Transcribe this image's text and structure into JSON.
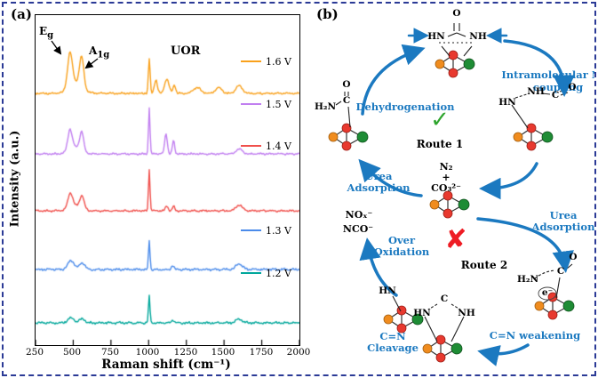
{
  "figure": {
    "panel_a": "(a)",
    "panel_b": "(b)"
  },
  "colors": {
    "border_blue": "#2B3A96",
    "mechanism_blue": "#1B79C0",
    "check_green": "#2FA52E",
    "cross_red": "#EE1C24",
    "atom_orange": "#F08C1E",
    "atom_red": "#E8392F",
    "atom_green": "#1E8C35"
  },
  "chart_data": {
    "type": "line",
    "title": "",
    "xlabel": "Raman shift (cm⁻¹)",
    "ylabel": "Intensity (a.u.)",
    "xlim": [
      250,
      2000
    ],
    "x_ticks": [
      "250",
      "500",
      "750",
      "1000",
      "1250",
      "1500",
      "1750",
      "2000"
    ],
    "grid": false,
    "legend_position": "inside-right",
    "annotations": {
      "eg_main": "E",
      "eg_sub": "g",
      "a1g_main": "A",
      "a1g_sub": "1g",
      "uor": "UOR"
    },
    "peak_format": "[center_cm-1, width_cm-1, relative_intensity]",
    "series": [
      {
        "name": "1.6 V",
        "color": "#F9A11C",
        "noise": 0.025,
        "peaks": [
          [
            478,
            22,
            0.7
          ],
          [
            556,
            20,
            0.62
          ],
          [
            515,
            60,
            0.22
          ],
          [
            1004,
            8,
            0.72
          ],
          [
            1048,
            14,
            0.28
          ],
          [
            1120,
            20,
            0.3
          ],
          [
            1170,
            12,
            0.18
          ],
          [
            1320,
            35,
            0.12
          ],
          [
            1465,
            30,
            0.12
          ],
          [
            1600,
            30,
            0.16
          ]
        ]
      },
      {
        "name": "1.5 V",
        "color": "#C17FF0",
        "noise": 0.025,
        "peaks": [
          [
            478,
            20,
            0.42
          ],
          [
            556,
            18,
            0.38
          ],
          [
            515,
            55,
            0.14
          ],
          [
            1004,
            7,
            0.95
          ],
          [
            1115,
            12,
            0.42
          ],
          [
            1165,
            10,
            0.28
          ],
          [
            1600,
            30,
            0.1
          ]
        ]
      },
      {
        "name": "1.4 V",
        "color": "#F0504C",
        "noise": 0.025,
        "peaks": [
          [
            480,
            22,
            0.3
          ],
          [
            558,
            20,
            0.26
          ],
          [
            515,
            55,
            0.1
          ],
          [
            1004,
            7,
            0.85
          ],
          [
            1120,
            12,
            0.1
          ],
          [
            1165,
            10,
            0.1
          ],
          [
            1600,
            30,
            0.12
          ]
        ]
      },
      {
        "name": "1.3 V",
        "color": "#4B8BEA",
        "noise": 0.03,
        "peaks": [
          [
            485,
            30,
            0.18
          ],
          [
            560,
            25,
            0.14
          ],
          [
            1004,
            7,
            0.6
          ],
          [
            1160,
            12,
            0.08
          ],
          [
            1600,
            30,
            0.12
          ]
        ]
      },
      {
        "name": "1.2 V",
        "color": "#00A79B",
        "noise": 0.03,
        "peaks": [
          [
            485,
            30,
            0.1
          ],
          [
            560,
            25,
            0.08
          ],
          [
            1004,
            7,
            0.55
          ],
          [
            1160,
            12,
            0.06
          ],
          [
            1600,
            30,
            0.08
          ]
        ]
      }
    ]
  },
  "mechanism": {
    "dehydrogenation": "Dehydrogenation",
    "nn_coupling": [
      "Intramolecular N-N",
      "coupling"
    ],
    "route1": "Route 1",
    "route2": "Route 2",
    "check_mark": "✓",
    "cross_mark": "✘",
    "products": [
      "N₂",
      "+",
      "CO₃²⁻"
    ],
    "urea_adsorption_left": [
      "Urea",
      "Adsorption"
    ],
    "urea_adsorption_right": [
      "Urea",
      "Adsorption"
    ],
    "over_oxidation_products": [
      "NOₓ⁻",
      "NCO⁻"
    ],
    "over_oxidation": [
      "Over",
      "Oxidation"
    ],
    "cn_cleavage": [
      "C=N",
      "Cleavage"
    ],
    "cn_weakening": "C=N weakening",
    "molecules": {
      "top": {
        "o": "O",
        "hn": "HN",
        "nh": "NH"
      },
      "left": {
        "o": "O",
        "c": "C",
        "h2n": "H₂N"
      },
      "right": {
        "hn": "HN",
        "nh": "NH",
        "c": "C",
        "o": "O"
      },
      "bottom_right": {
        "o": "O",
        "c": "C",
        "h2n": "H₂N",
        "electron": "e⁻"
      },
      "bottom_center": {
        "c": "C",
        "hn": "HN",
        "nh": "NH"
      },
      "bottom_left": {
        "hn": "HN"
      }
    }
  }
}
